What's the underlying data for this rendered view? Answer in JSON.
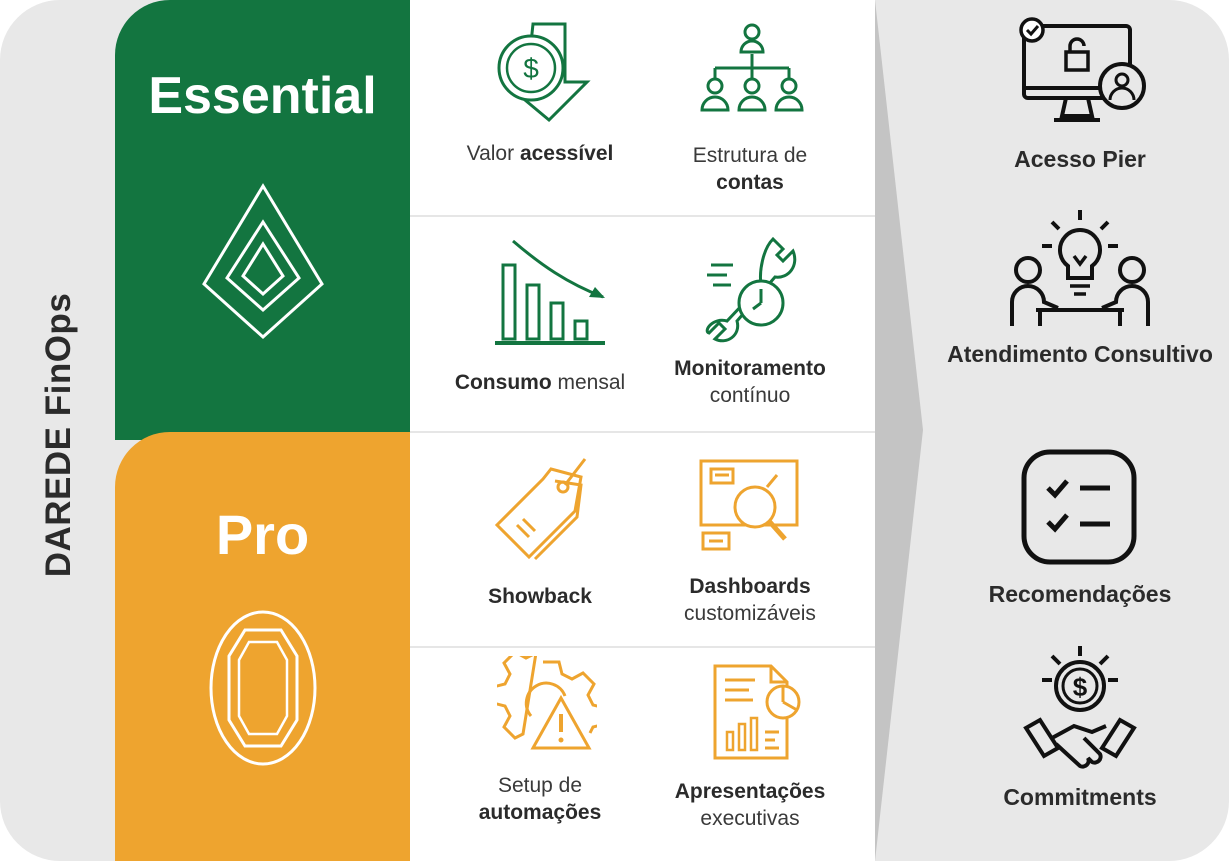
{
  "brand": {
    "title": "DAREDE FinOps"
  },
  "colors": {
    "green": "#137540",
    "orange": "#eea42f",
    "dark": "#2b2b2b",
    "panel": "#e8e8e8"
  },
  "tiers": [
    {
      "name": "Essential",
      "emblem": "diamond-emblem-icon"
    },
    {
      "name": "Pro",
      "emblem": "octagon-emblem-icon"
    }
  ],
  "features": [
    {
      "icon": "dollar-arrow-down-icon",
      "text": "Valor",
      "bold": "acessível",
      "bold_first": false
    },
    {
      "icon": "org-chart-icon",
      "text": "Estrutura de",
      "bold": "contas",
      "bold_first": false
    },
    {
      "icon": "declining-chart-icon",
      "text": "mensal",
      "bold": "Consumo",
      "bold_first": true
    },
    {
      "icon": "wrench-gauge-icon",
      "text": "contínuo",
      "bold": "Monitoramento",
      "bold_first": true
    },
    {
      "icon": "price-tag-icon",
      "text": "",
      "bold": "Showback",
      "bold_first": true
    },
    {
      "icon": "dashboard-magnifier-icon",
      "text": "customizáveis",
      "bold": "Dashboards",
      "bold_first": true
    },
    {
      "icon": "gear-warning-icon",
      "text": "Setup de",
      "bold": "automações",
      "bold_first": false
    },
    {
      "icon": "report-document-icon",
      "text": "executivas",
      "bold": "Apresentações",
      "bold_first": true
    }
  ],
  "benefits": [
    {
      "icon": "monitor-lock-user-icon",
      "label": "Acesso Pier"
    },
    {
      "icon": "consulting-lightbulb-icon",
      "label": "Atendimento Consultivo"
    },
    {
      "icon": "checklist-icon",
      "label": "Recomendações"
    },
    {
      "icon": "handshake-dollar-icon",
      "label": "Commitments"
    }
  ]
}
